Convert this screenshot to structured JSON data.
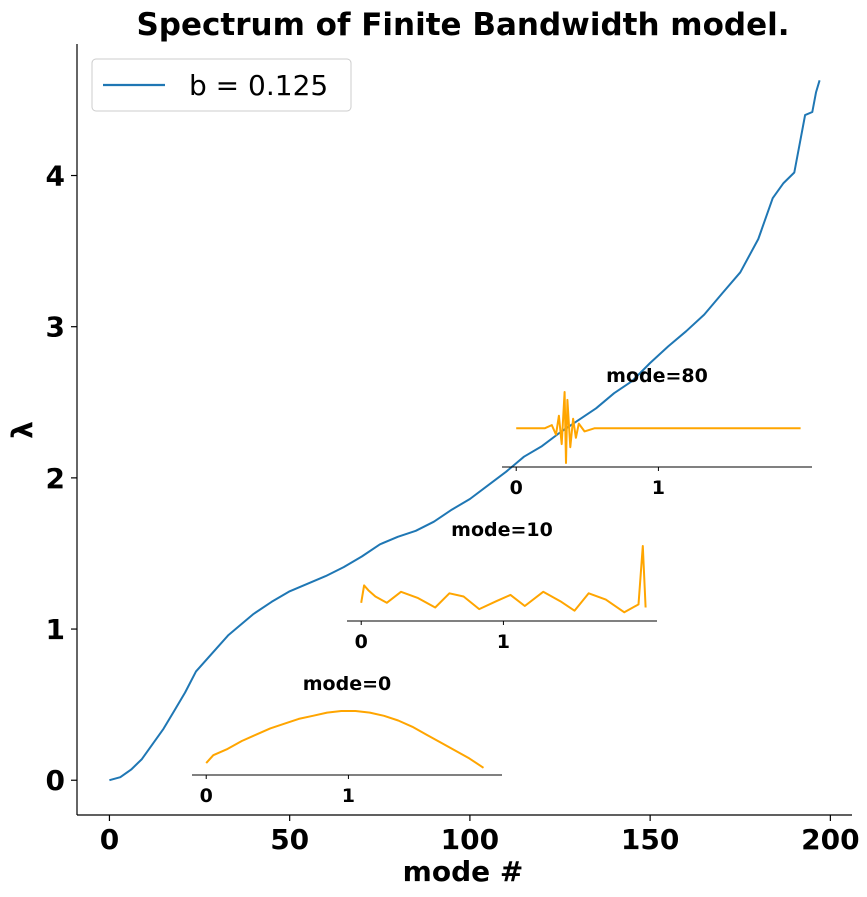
{
  "chart_data": {
    "type": "line",
    "title": "Spectrum of Finite Bandwidth model.",
    "xlabel": "mode #",
    "ylabel": "λ",
    "xlim": [
      -9,
      206
    ],
    "ylim": [
      -0.23,
      4.87
    ],
    "xticks": [
      0,
      50,
      100,
      150,
      200
    ],
    "yticks": [
      0,
      1,
      2,
      3,
      4
    ],
    "grid": false,
    "legend": {
      "position": "top-left"
    },
    "series": [
      {
        "name": "b = 0.125",
        "color": "#1f77b4",
        "x": [
          0,
          3,
          6,
          9,
          12,
          15,
          18,
          21,
          24,
          27,
          30,
          33,
          36,
          40,
          45,
          50,
          55,
          60,
          65,
          70,
          75,
          80,
          85,
          90,
          95,
          100,
          105,
          110,
          115,
          120,
          125,
          130,
          135,
          140,
          145,
          150,
          155,
          160,
          165,
          170,
          175,
          180,
          184,
          187,
          190,
          193,
          195,
          196,
          197
        ],
        "y": [
          0.0,
          0.02,
          0.07,
          0.14,
          0.24,
          0.34,
          0.46,
          0.58,
          0.72,
          0.8,
          0.88,
          0.96,
          1.02,
          1.1,
          1.18,
          1.25,
          1.3,
          1.35,
          1.41,
          1.48,
          1.56,
          1.61,
          1.65,
          1.71,
          1.79,
          1.86,
          1.95,
          2.04,
          2.14,
          2.21,
          2.3,
          2.38,
          2.46,
          2.56,
          2.64,
          2.76,
          2.87,
          2.97,
          3.08,
          3.22,
          3.36,
          3.58,
          3.85,
          3.95,
          4.02,
          4.4,
          4.42,
          4.55,
          4.63
        ]
      }
    ],
    "insets": [
      {
        "title": "mode=0",
        "color": "#ffa500",
        "xticks": [
          0,
          1
        ],
        "xlim": [
          -0.1,
          2.08
        ],
        "ylim": [
          0,
          0.45
        ],
        "x": [
          0.0,
          0.05,
          0.15,
          0.25,
          0.35,
          0.45,
          0.55,
          0.65,
          0.75,
          0.85,
          0.95,
          1.05,
          1.15,
          1.25,
          1.35,
          1.45,
          1.55,
          1.65,
          1.75,
          1.85,
          1.95
        ],
        "y": [
          0.05,
          0.1,
          0.14,
          0.19,
          0.23,
          0.27,
          0.3,
          0.33,
          0.35,
          0.37,
          0.38,
          0.38,
          0.37,
          0.35,
          0.32,
          0.28,
          0.23,
          0.18,
          0.13,
          0.08,
          0.02
        ]
      },
      {
        "title": "mode=10",
        "color": "#ffa500",
        "xticks": [
          0,
          1
        ],
        "xlim": [
          -0.1,
          2.08
        ],
        "ylim": [
          0,
          0.45
        ],
        "x": [
          0.0,
          0.02,
          0.05,
          0.1,
          0.18,
          0.28,
          0.4,
          0.52,
          0.62,
          0.72,
          0.83,
          0.95,
          1.05,
          1.15,
          1.28,
          1.4,
          1.5,
          1.6,
          1.72,
          1.85,
          1.95,
          1.98,
          2.0
        ],
        "y": [
          0.09,
          0.2,
          0.17,
          0.13,
          0.09,
          0.16,
          0.12,
          0.06,
          0.15,
          0.13,
          0.05,
          0.1,
          0.14,
          0.07,
          0.16,
          0.1,
          0.04,
          0.15,
          0.11,
          0.03,
          0.08,
          0.45,
          0.06
        ]
      },
      {
        "title": "mode=80",
        "color": "#ffa500",
        "xticks": [
          0,
          1
        ],
        "xlim": [
          -0.1,
          2.08
        ],
        "ylim": [
          0,
          0.45
        ],
        "x": [
          0.0,
          0.1,
          0.2,
          0.25,
          0.28,
          0.3,
          0.32,
          0.34,
          0.35,
          0.36,
          0.38,
          0.4,
          0.42,
          0.44,
          0.48,
          0.55,
          0.65,
          0.8,
          1.0,
          1.5,
          2.0
        ],
        "y": [
          0.22,
          0.22,
          0.22,
          0.24,
          0.18,
          0.3,
          0.12,
          0.45,
          0.0,
          0.4,
          0.1,
          0.28,
          0.16,
          0.25,
          0.2,
          0.22,
          0.22,
          0.22,
          0.22,
          0.22,
          0.22
        ]
      }
    ]
  }
}
